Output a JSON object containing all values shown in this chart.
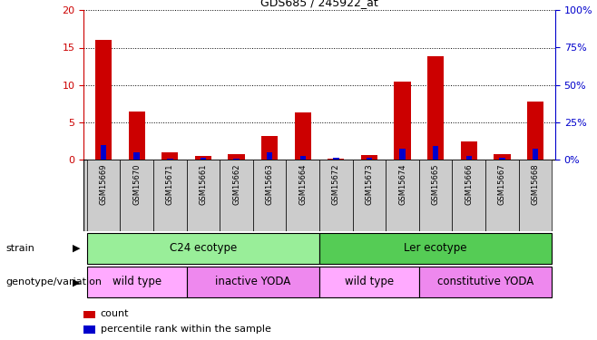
{
  "title": "GDS685 / 245922_at",
  "samples": [
    "GSM15669",
    "GSM15670",
    "GSM15671",
    "GSM15661",
    "GSM15662",
    "GSM15663",
    "GSM15664",
    "GSM15672",
    "GSM15673",
    "GSM15674",
    "GSM15665",
    "GSM15666",
    "GSM15667",
    "GSM15668"
  ],
  "count_values": [
    16.0,
    6.5,
    1.0,
    0.5,
    0.7,
    3.2,
    6.3,
    0.1,
    0.6,
    10.4,
    13.8,
    2.5,
    0.8,
    7.8
  ],
  "percentile_values": [
    10.0,
    5.0,
    1.0,
    1.5,
    1.0,
    5.0,
    2.5,
    1.5,
    1.5,
    7.5,
    9.0,
    2.5,
    1.5,
    7.5
  ],
  "ylim_left": [
    0,
    20
  ],
  "ylim_right": [
    0,
    100
  ],
  "yticks_left": [
    0,
    5,
    10,
    15,
    20
  ],
  "yticks_right": [
    0,
    25,
    50,
    75,
    100
  ],
  "count_color": "#cc0000",
  "percentile_color": "#0000cc",
  "strain_labels": [
    {
      "text": "C24 ecotype",
      "start": 0,
      "end": 6,
      "color": "#99ee99"
    },
    {
      "text": "Ler ecotype",
      "start": 7,
      "end": 13,
      "color": "#55cc55"
    }
  ],
  "genotype_labels": [
    {
      "text": "wild type",
      "start": 0,
      "end": 2,
      "color": "#ffaaff"
    },
    {
      "text": "inactive YODA",
      "start": 3,
      "end": 6,
      "color": "#ee88ee"
    },
    {
      "text": "wild type",
      "start": 7,
      "end": 9,
      "color": "#ffaaff"
    },
    {
      "text": "constitutive YODA",
      "start": 10,
      "end": 13,
      "color": "#ee88ee"
    }
  ],
  "legend_count_label": "count",
  "legend_percentile_label": "percentile rank within the sample",
  "background_color": "#ffffff",
  "tick_label_color_left": "#cc0000",
  "tick_label_color_right": "#0000cc",
  "strain_row_label": "strain",
  "genotype_row_label": "genotype/variation",
  "sample_bg_color": "#cccccc",
  "plot_bg_color": "#ffffff"
}
